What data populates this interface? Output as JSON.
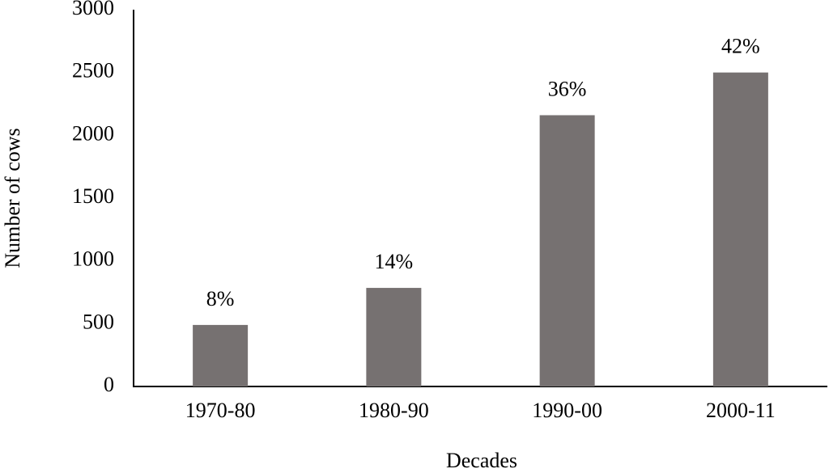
{
  "chart_data": {
    "type": "bar",
    "x_label": "Decades",
    "y_label": "Number of cows",
    "categories": [
      "1970-80",
      "1980-90",
      "1990-00",
      "2000-11"
    ],
    "values": [
      490,
      785,
      2160,
      2500
    ],
    "annotations": [
      "8%",
      "14%",
      "36%",
      "42%"
    ],
    "color": "#767171",
    "ylim": [
      0,
      3000
    ],
    "yticks": [
      0,
      500,
      1000,
      1500,
      2000,
      2500,
      3000
    ],
    "grid": false
  }
}
